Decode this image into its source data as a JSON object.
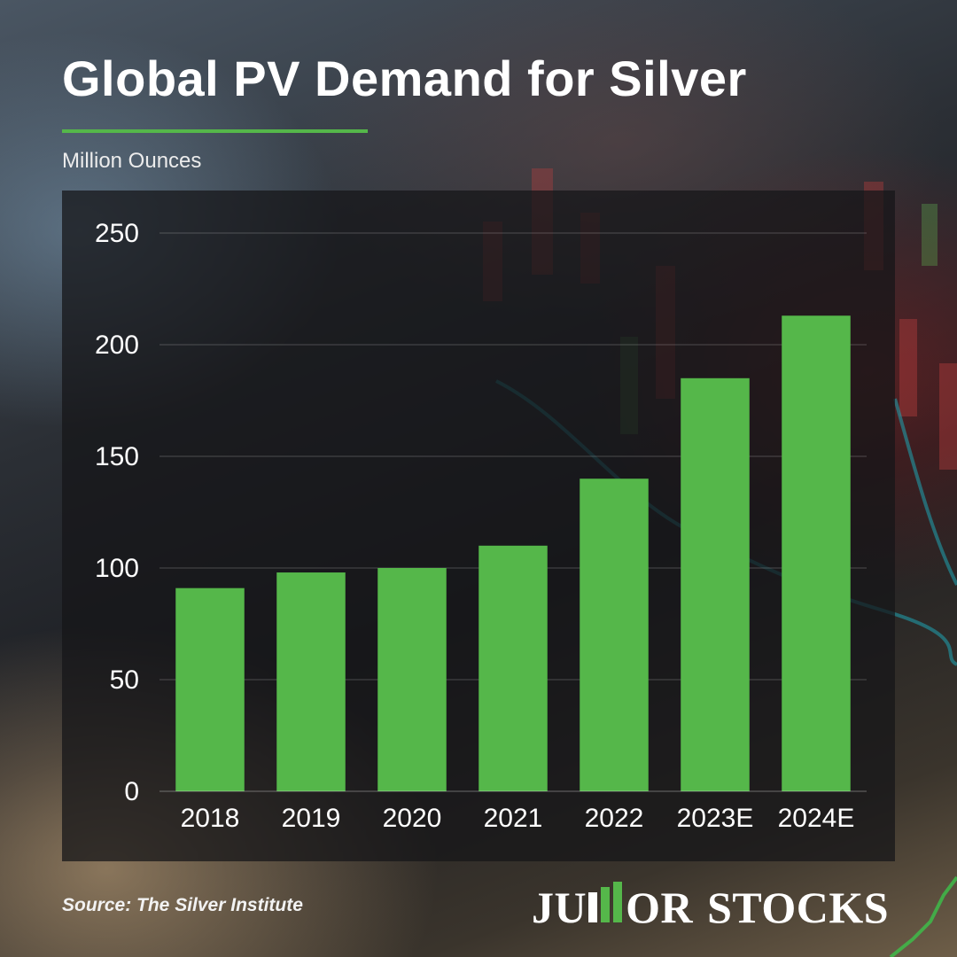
{
  "title": "Global PV Demand for Silver",
  "subtitle": "Million Ounces",
  "source": "Source: The Silver Institute",
  "logo": {
    "part1": "JU",
    "part2": "OR",
    "part3": "STOCKS",
    "full_text": "JUNIOR STOCKS"
  },
  "colors": {
    "bar": "#55b74a",
    "accent_rule": "#55b74a",
    "text": "#ffffff"
  },
  "chart_data": {
    "type": "bar",
    "title": "Global PV Demand for Silver",
    "ylabel": "Million Ounces",
    "categories": [
      "2018",
      "2019",
      "2020",
      "2021",
      "2022",
      "2023E",
      "2024E"
    ],
    "values": [
      91,
      98,
      100,
      110,
      140,
      185,
      213
    ],
    "ylim": [
      0,
      250
    ],
    "yticks": [
      0,
      50,
      100,
      150,
      200,
      250
    ],
    "grid": true,
    "legend": "none"
  }
}
